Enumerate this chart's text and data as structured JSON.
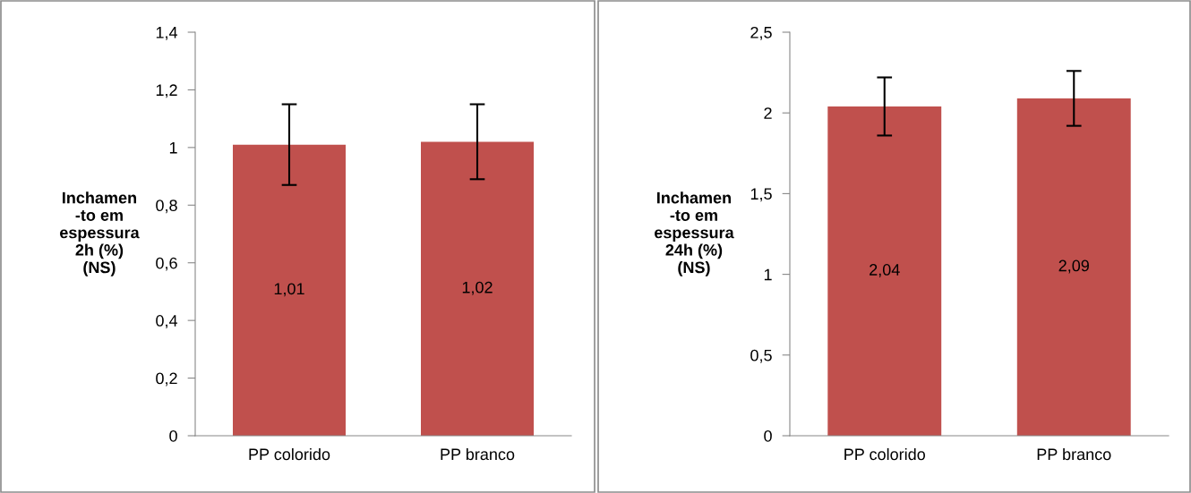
{
  "chart_data": [
    {
      "type": "bar",
      "ylabel": "Inchamen\n-to em\nespessura\n2h (%)\n(NS)",
      "categories": [
        "PP colorido",
        "PP branco"
      ],
      "values": [
        1.01,
        1.02
      ],
      "errors": [
        0.14,
        0.13
      ],
      "value_labels": [
        "1,01",
        "1,02"
      ],
      "color": "#c0504d",
      "ylim": [
        0,
        1.4
      ],
      "yticks": [
        {
          "value": 0,
          "label": "0"
        },
        {
          "value": 0.2,
          "label": "0,2"
        },
        {
          "value": 0.4,
          "label": "0,4"
        },
        {
          "value": 0.6,
          "label": "0,6"
        },
        {
          "value": 0.8,
          "label": "0,8"
        },
        {
          "value": 1,
          "label": "1"
        },
        {
          "value": 1.2,
          "label": "1,2"
        },
        {
          "value": 1.4,
          "label": "1,4"
        }
      ],
      "grid": false,
      "legend": false
    },
    {
      "type": "bar",
      "ylabel": "Inchamen\n-to em\nespessura\n24h (%)\n(NS)",
      "categories": [
        "PP colorido",
        "PP branco"
      ],
      "values": [
        2.04,
        2.09
      ],
      "errors": [
        0.18,
        0.17
      ],
      "value_labels": [
        "2,04",
        "2,09"
      ],
      "color": "#c0504d",
      "ylim": [
        0,
        2.5
      ],
      "yticks": [
        {
          "value": 0,
          "label": "0"
        },
        {
          "value": 0.5,
          "label": "0,5"
        },
        {
          "value": 1,
          "label": "1"
        },
        {
          "value": 1.5,
          "label": "1,5"
        },
        {
          "value": 2,
          "label": "2"
        },
        {
          "value": 2.5,
          "label": "2,5"
        }
      ],
      "grid": false,
      "legend": false
    }
  ]
}
